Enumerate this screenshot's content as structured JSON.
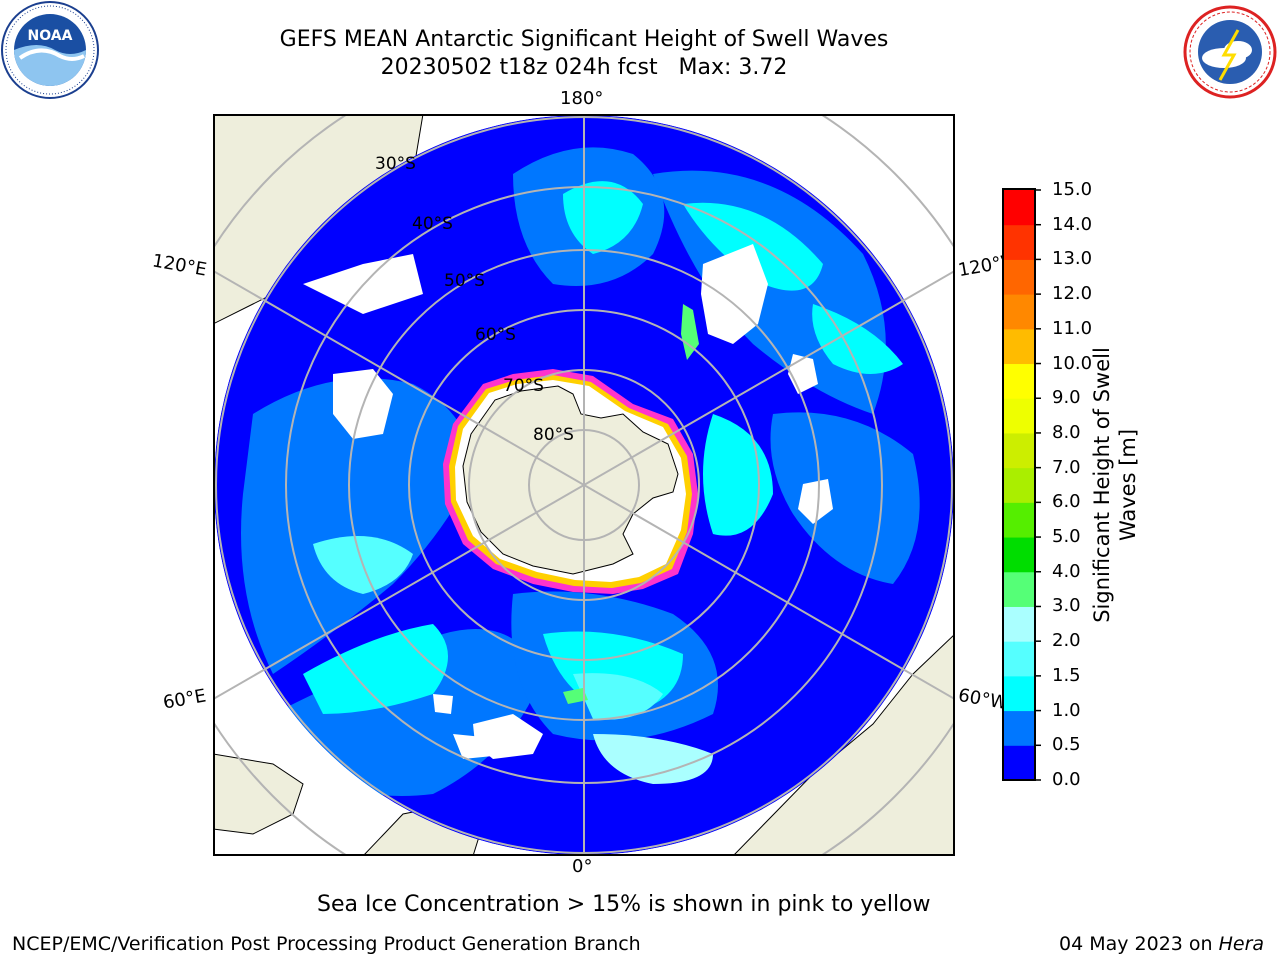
{
  "title": {
    "line1": "GEFS MEAN Antarctic Significant Height of Swell Waves",
    "line2": "20230502 t18z 024h fcst   Max: 3.72"
  },
  "logos": {
    "left": {
      "icon": "noaa-logo",
      "text": "NOAA"
    },
    "right": {
      "icon": "national-weather-service-logo",
      "text": "NATIONAL WEATHER SERVICE"
    }
  },
  "map": {
    "projection": "south-polar-stereographic",
    "lon_labels": {
      "top": "180°",
      "left_upper": "120°E",
      "right_upper": "120°W",
      "left_lower": "60°E",
      "right_lower": "60°W",
      "bottom": "0°"
    },
    "lat_labels": [
      "30°S",
      "40°S",
      "50°S",
      "60°S",
      "70°S",
      "80°S"
    ],
    "colors": {
      "land": "#eeeedc",
      "ice_pink": "#ff33cc",
      "ice_yellow": "#ffd000",
      "grid": "#b4b4b4"
    }
  },
  "colorbar": {
    "label_line1": "Significant Height of Swell",
    "label_line2": "Waves [m]",
    "ticks": [
      "15.0",
      "14.0",
      "13.0",
      "12.0",
      "11.0",
      "10.0",
      "9.0",
      "8.0",
      "7.0",
      "6.0",
      "5.0",
      "4.0",
      "3.0",
      "2.0",
      "1.5",
      "1.0",
      "0.5",
      "0.0"
    ],
    "colors": [
      "#0000ff",
      "#0077ff",
      "#00ffff",
      "#55ffff",
      "#aaffff",
      "#55ff77",
      "#00dd00",
      "#55ee00",
      "#aaee00",
      "#ccee00",
      "#eeff00",
      "#ffff00",
      "#ffbb00",
      "#ff8800",
      "#ff6600",
      "#ff3300",
      "#ff0000"
    ]
  },
  "note": "Sea Ice Concentration > 15% is shown in pink to yellow",
  "footer": {
    "left": "NCEP/EMC/Verification Post Processing Product Generation Branch",
    "date": "04 May 2023 on ",
    "machine": "Hera"
  }
}
